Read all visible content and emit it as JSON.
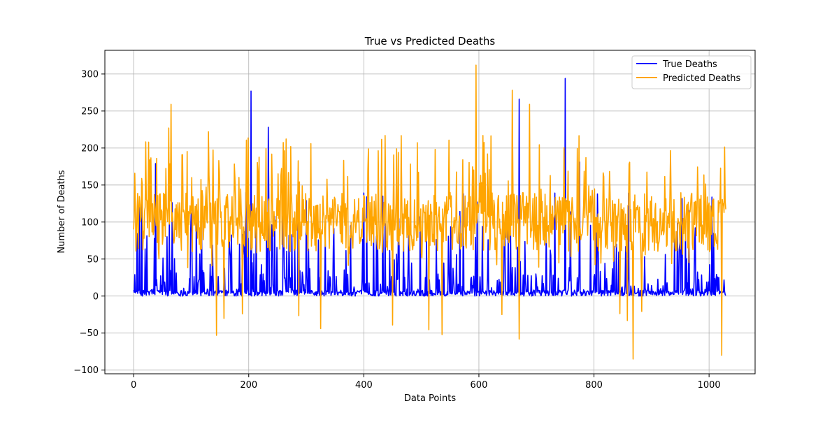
{
  "chart_data": {
    "type": "line",
    "title": "True vs Predicted Deaths",
    "xlabel": "Data Points",
    "ylabel": "Number of Deaths",
    "xlim": [
      -50,
      1080
    ],
    "ylim": [
      -105,
      332
    ],
    "xticks": [
      0,
      200,
      400,
      600,
      800,
      1000
    ],
    "yticks": [
      -100,
      -50,
      0,
      50,
      100,
      150,
      200,
      250,
      300
    ],
    "grid": true,
    "legend": "top-right",
    "n_points": 1030,
    "series": [
      {
        "name": "True Deaths",
        "color": "#0000ff",
        "notes": "mostly near zero with sparse spikes",
        "values_sampled": [
          {
            "x": 0,
            "y": 8
          },
          {
            "x": 14,
            "y": 153
          },
          {
            "x": 38,
            "y": 179
          },
          {
            "x": 100,
            "y": 112
          },
          {
            "x": 118,
            "y": 123
          },
          {
            "x": 195,
            "y": 140
          },
          {
            "x": 204,
            "y": 277
          },
          {
            "x": 234,
            "y": 228
          },
          {
            "x": 260,
            "y": 150
          },
          {
            "x": 286,
            "y": 150
          },
          {
            "x": 300,
            "y": 129
          },
          {
            "x": 670,
            "y": 266
          },
          {
            "x": 750,
            "y": 294
          },
          {
            "x": 775,
            "y": 181
          },
          {
            "x": 1030,
            "y": 0
          }
        ]
      },
      {
        "name": "Predicted Deaths",
        "color": "#ffa500",
        "notes": "noisy around ~100 with large swings",
        "values_sampled": [
          {
            "x": 0,
            "y": 90
          },
          {
            "x": 26,
            "y": 208
          },
          {
            "x": 65,
            "y": 259
          },
          {
            "x": 130,
            "y": 222
          },
          {
            "x": 144,
            "y": -53
          },
          {
            "x": 325,
            "y": -44
          },
          {
            "x": 536,
            "y": -52
          },
          {
            "x": 595,
            "y": 312
          },
          {
            "x": 658,
            "y": 278
          },
          {
            "x": 670,
            "y": -58
          },
          {
            "x": 688,
            "y": 259
          },
          {
            "x": 868,
            "y": -85
          },
          {
            "x": 1022,
            "y": -80
          },
          {
            "x": 1030,
            "y": 100
          }
        ]
      }
    ]
  }
}
